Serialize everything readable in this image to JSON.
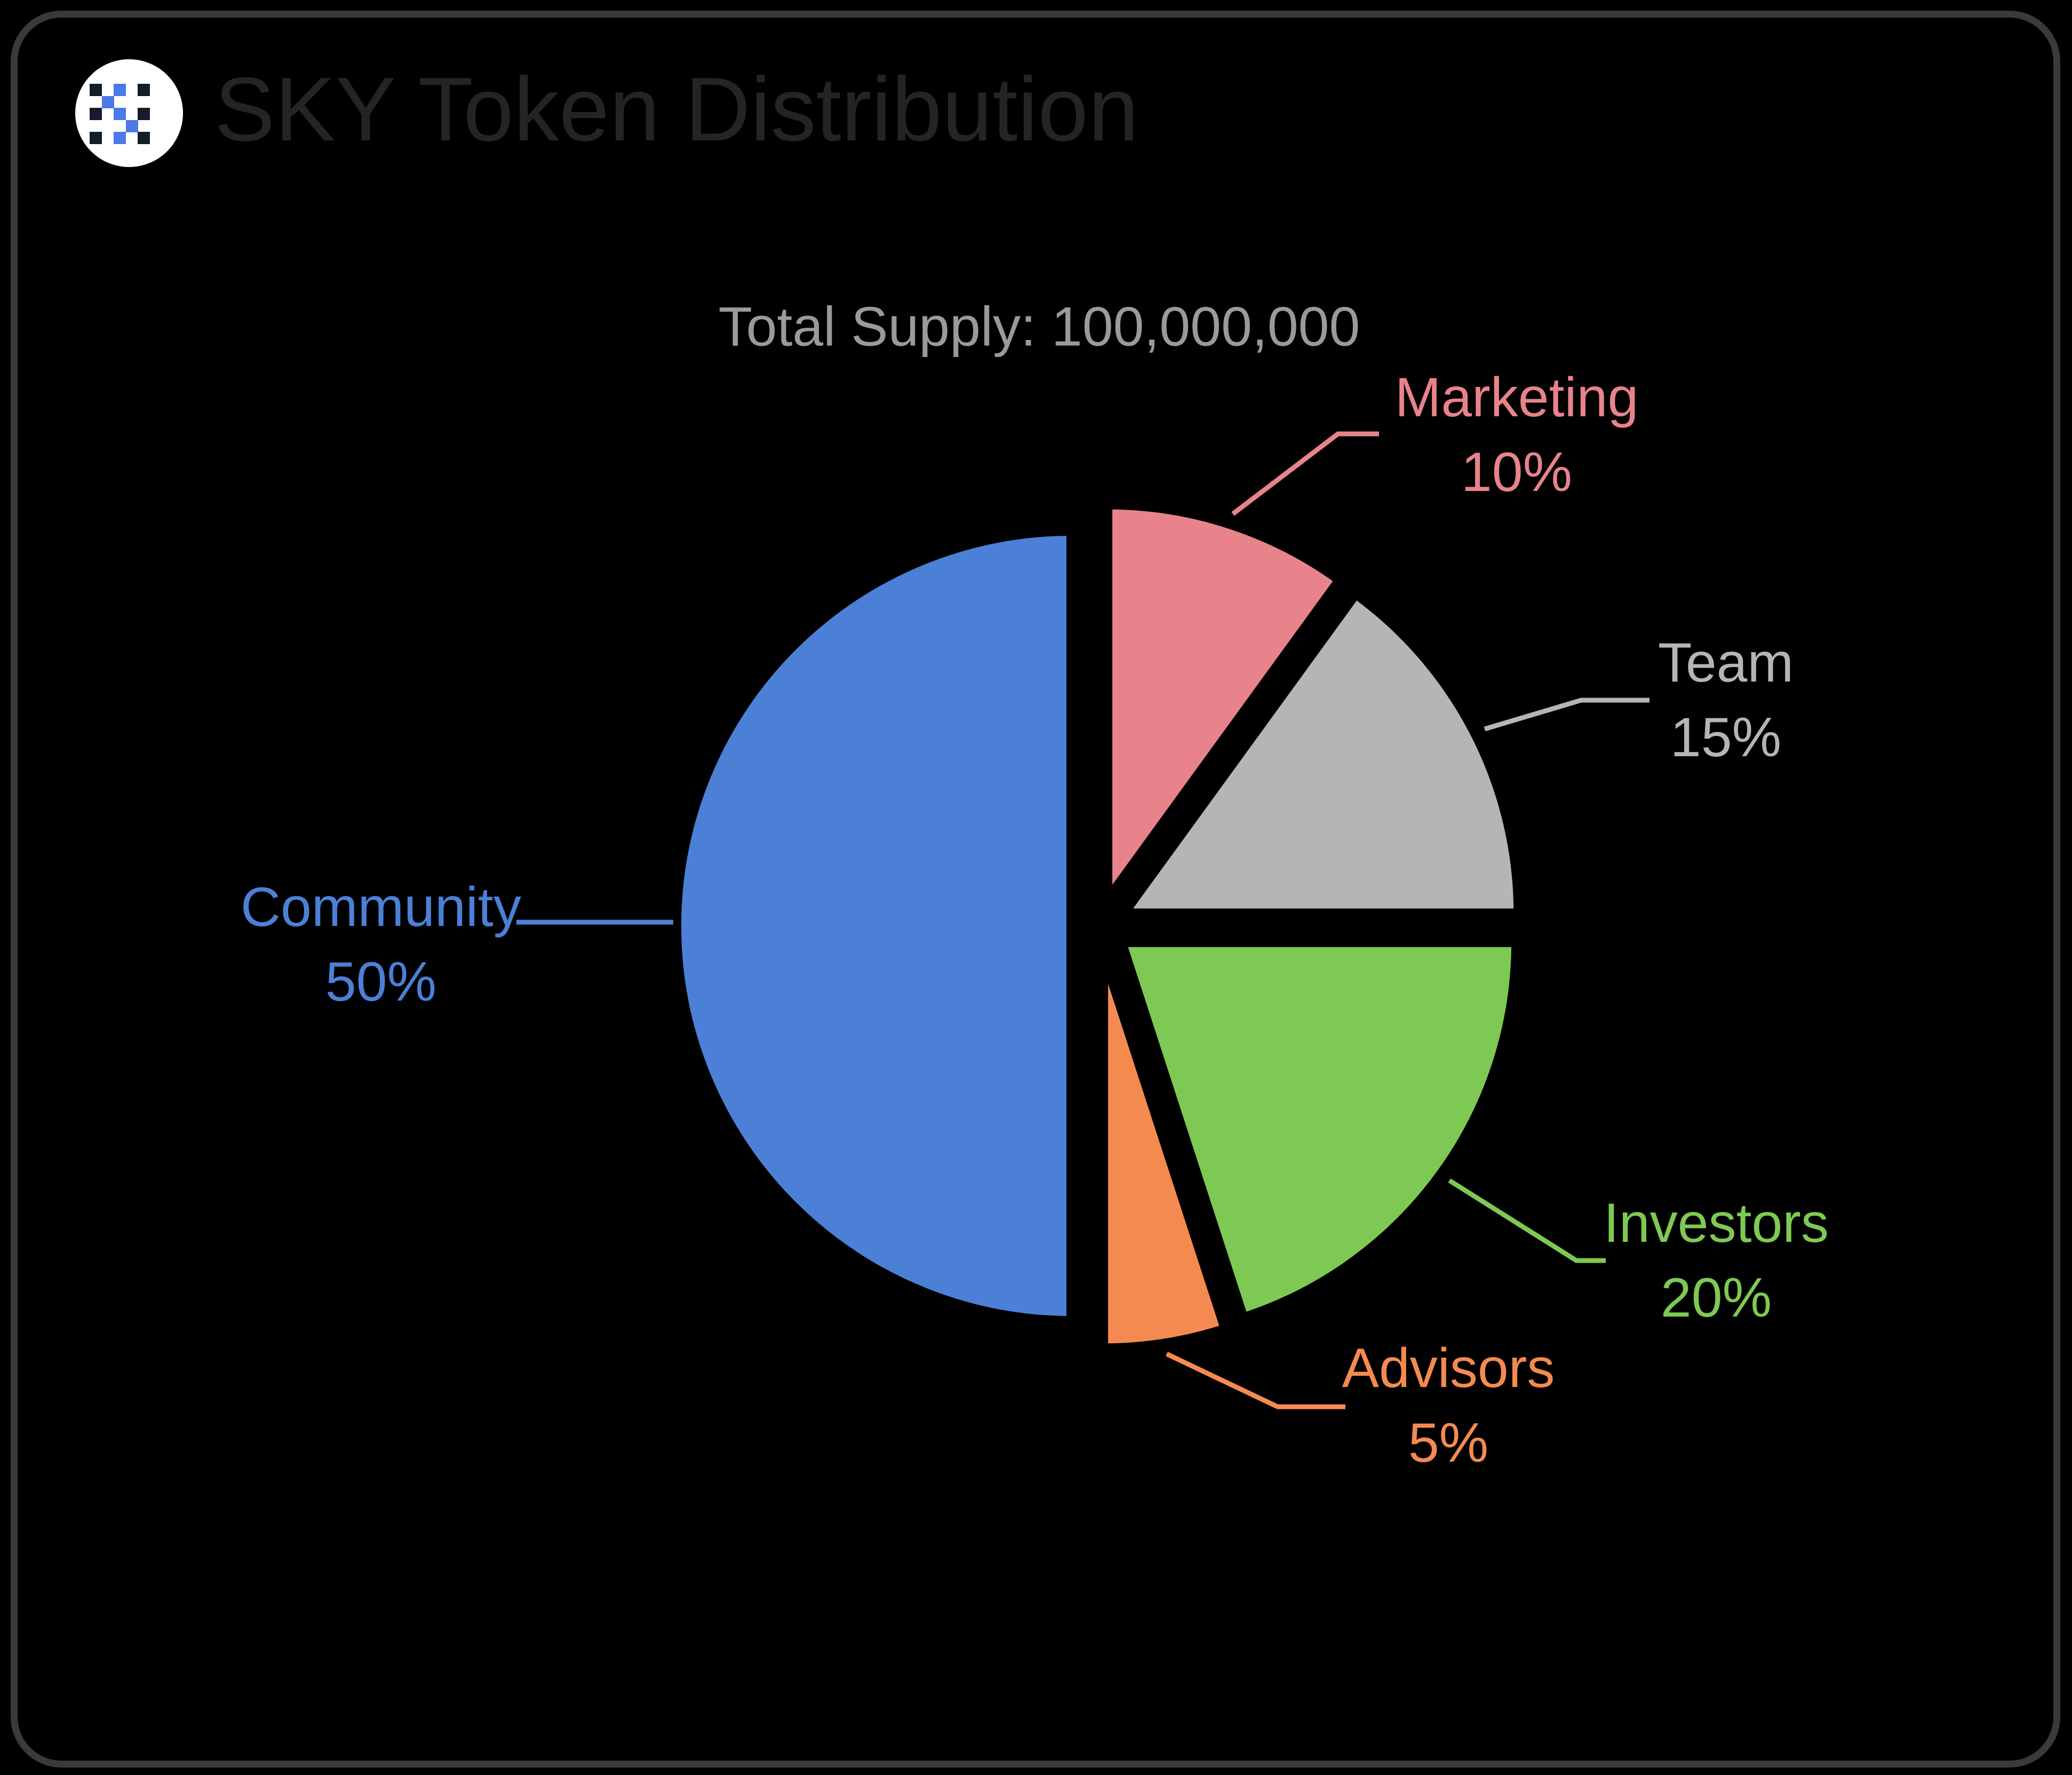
{
  "window": {
    "background": "#000000",
    "border_color": "#3a3a3a"
  },
  "header": {
    "title": "SKY Token Distribution",
    "title_color": "#242424",
    "logo": {
      "bg_color": "#ffffff",
      "dark_color": "#141b2b",
      "blue_color": "#4b79e8",
      "pattern": [
        {
          "c": 0,
          "r": 0,
          "k": "dark"
        },
        {
          "c": 2,
          "r": 0,
          "k": "blue"
        },
        {
          "c": 4,
          "r": 0,
          "k": "dark"
        },
        {
          "c": 1,
          "r": 1,
          "k": "blue"
        },
        {
          "c": 0,
          "r": 2,
          "k": "dark"
        },
        {
          "c": 2,
          "r": 2,
          "k": "blue"
        },
        {
          "c": 4,
          "r": 2,
          "k": "dark"
        },
        {
          "c": 3,
          "r": 3,
          "k": "blue"
        },
        {
          "c": 0,
          "r": 4,
          "k": "dark"
        },
        {
          "c": 2,
          "r": 4,
          "k": "blue"
        },
        {
          "c": 4,
          "r": 4,
          "k": "dark"
        }
      ]
    }
  },
  "chart_data": {
    "type": "pie",
    "title": "SKY Token Distribution",
    "subtitle": "Total Supply: 100,000,000",
    "subtitle_color": "#9a9a9a",
    "total_supply": 100000000,
    "start_angle": "top",
    "direction": "clockwise",
    "donut": false,
    "exploded": true,
    "background": "#000000",
    "legend_position": "callout-labels",
    "slices": [
      {
        "label": "Marketing",
        "value": 10,
        "pct_label": "10%",
        "color": "#e8838b"
      },
      {
        "label": "Team",
        "value": 15,
        "pct_label": "15%",
        "color": "#b5b5b5"
      },
      {
        "label": "Investors",
        "value": 20,
        "pct_label": "20%",
        "color": "#7ec954"
      },
      {
        "label": "Advisors",
        "value": 5,
        "pct_label": "5%",
        "color": "#f58a50"
      },
      {
        "label": "Community",
        "value": 50,
        "pct_label": "50%",
        "color": "#4b80d6"
      }
    ]
  }
}
